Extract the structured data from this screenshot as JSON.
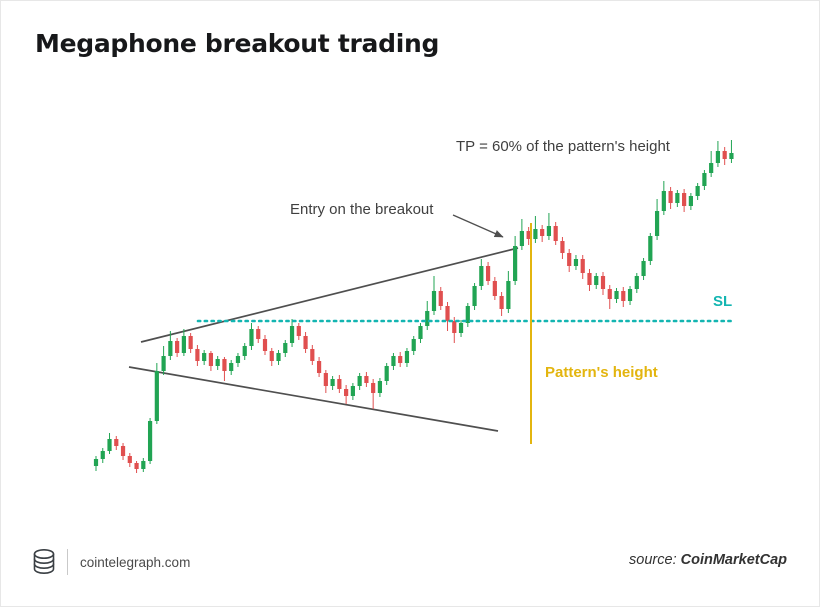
{
  "page": {
    "title": "Megaphone breakout trading"
  },
  "annotations": {
    "tp_label": "TP = 60% of the pattern's height",
    "entry_label": "Entry on the breakout",
    "sl_label": "SL",
    "height_label": "Pattern's height"
  },
  "footer": {
    "site": "cointelegraph.com",
    "source_prefix": "source: ",
    "source_name": "CoinMarketCap"
  },
  "colors": {
    "up": "#21a453",
    "down": "#e04f4f",
    "trendline": "#4f4f4f",
    "sl": "#13b5b1",
    "height": "#e3b50f",
    "text": "#3f3f3f",
    "title": "#17181a"
  },
  "chart_data": {
    "type": "candlestick",
    "title": "Megaphone breakout trading",
    "xlabel": "",
    "ylabel": "",
    "grid": false,
    "legend": "none",
    "ylim": [
      0,
      345
    ],
    "x_count": 95,
    "x_start": 95,
    "x_step": 6.76,
    "candle_width": 4.2,
    "y_base": 480,
    "y_scale": 1,
    "candles": [
      [
        15,
        25,
        10,
        22
      ],
      [
        22,
        33,
        18,
        30
      ],
      [
        30,
        48,
        27,
        42
      ],
      [
        42,
        45,
        31,
        35
      ],
      [
        35,
        38,
        21,
        25
      ],
      [
        25,
        28,
        14,
        18
      ],
      [
        18,
        20,
        8,
        12
      ],
      [
        12,
        23,
        9,
        20
      ],
      [
        20,
        63,
        17,
        60
      ],
      [
        60,
        118,
        57,
        110
      ],
      [
        110,
        135,
        106,
        125
      ],
      [
        125,
        150,
        121,
        140
      ],
      [
        140,
        143,
        124,
        128
      ],
      [
        128,
        152,
        125,
        145
      ],
      [
        145,
        148,
        128,
        132
      ],
      [
        132,
        136,
        115,
        120
      ],
      [
        120,
        131,
        116,
        128
      ],
      [
        128,
        130,
        110,
        115
      ],
      [
        115,
        125,
        111,
        122
      ],
      [
        122,
        124,
        100,
        110
      ],
      [
        110,
        121,
        106,
        118
      ],
      [
        118,
        128,
        114,
        125
      ],
      [
        125,
        138,
        121,
        135
      ],
      [
        135,
        158,
        131,
        152
      ],
      [
        152,
        155,
        138,
        142
      ],
      [
        142,
        146,
        126,
        130
      ],
      [
        130,
        133,
        115,
        120
      ],
      [
        120,
        131,
        116,
        128
      ],
      [
        128,
        141,
        124,
        138
      ],
      [
        138,
        162,
        134,
        155
      ],
      [
        155,
        158,
        141,
        145
      ],
      [
        145,
        149,
        128,
        132
      ],
      [
        132,
        136,
        116,
        120
      ],
      [
        120,
        124,
        104,
        108
      ],
      [
        108,
        111,
        88,
        95
      ],
      [
        95,
        105,
        91,
        102
      ],
      [
        102,
        106,
        88,
        92
      ],
      [
        92,
        96,
        77,
        85
      ],
      [
        85,
        98,
        81,
        95
      ],
      [
        95,
        108,
        91,
        105
      ],
      [
        105,
        109,
        94,
        98
      ],
      [
        98,
        102,
        72,
        88
      ],
      [
        88,
        103,
        84,
        100
      ],
      [
        100,
        118,
        96,
        115
      ],
      [
        115,
        128,
        111,
        125
      ],
      [
        125,
        129,
        114,
        118
      ],
      [
        118,
        133,
        114,
        130
      ],
      [
        130,
        145,
        126,
        142
      ],
      [
        142,
        158,
        138,
        155
      ],
      [
        155,
        180,
        151,
        170
      ],
      [
        170,
        205,
        166,
        190
      ],
      [
        190,
        194,
        171,
        175
      ],
      [
        175,
        179,
        150,
        160
      ],
      [
        160,
        164,
        138,
        148
      ],
      [
        148,
        161,
        144,
        158
      ],
      [
        158,
        178,
        154,
        175
      ],
      [
        175,
        198,
        171,
        195
      ],
      [
        195,
        222,
        191,
        215
      ],
      [
        215,
        219,
        196,
        200
      ],
      [
        200,
        204,
        181,
        185
      ],
      [
        185,
        189,
        165,
        172
      ],
      [
        172,
        210,
        168,
        200
      ],
      [
        200,
        245,
        196,
        235
      ],
      [
        235,
        262,
        231,
        250
      ],
      [
        250,
        254,
        236,
        242
      ],
      [
        242,
        265,
        238,
        252
      ],
      [
        252,
        256,
        239,
        245
      ],
      [
        245,
        268,
        241,
        255
      ],
      [
        255,
        259,
        236,
        240
      ],
      [
        240,
        244,
        222,
        228
      ],
      [
        228,
        232,
        209,
        215
      ],
      [
        215,
        226,
        211,
        222
      ],
      [
        222,
        226,
        202,
        208
      ],
      [
        208,
        212,
        190,
        196
      ],
      [
        196,
        208,
        192,
        205
      ],
      [
        205,
        209,
        186,
        192
      ],
      [
        192,
        196,
        172,
        182
      ],
      [
        182,
        193,
        178,
        190
      ],
      [
        190,
        194,
        174,
        180
      ],
      [
        180,
        195,
        176,
        192
      ],
      [
        192,
        208,
        188,
        205
      ],
      [
        205,
        223,
        201,
        220
      ],
      [
        220,
        248,
        216,
        245
      ],
      [
        245,
        282,
        241,
        270
      ],
      [
        270,
        300,
        266,
        290
      ],
      [
        290,
        294,
        272,
        278
      ],
      [
        278,
        291,
        274,
        288
      ],
      [
        288,
        292,
        269,
        275
      ],
      [
        275,
        288,
        271,
        285
      ],
      [
        285,
        298,
        281,
        295
      ],
      [
        295,
        311,
        291,
        308
      ],
      [
        308,
        330,
        304,
        318
      ],
      [
        318,
        340,
        314,
        330
      ],
      [
        330,
        334,
        316,
        322
      ],
      [
        322,
        341,
        318,
        328
      ]
    ],
    "lines": {
      "upper_trendline": {
        "x1": 140,
        "y1": 341,
        "x2": 517,
        "y2": 247
      },
      "lower_trendline": {
        "x1": 128,
        "y1": 366,
        "x2": 497,
        "y2": 430
      },
      "stop_loss": {
        "x1": 197,
        "y1": 320,
        "x2": 731,
        "y2": 320
      },
      "pattern_height": {
        "x1": 530,
        "y1": 222,
        "x2": 530,
        "y2": 443
      }
    },
    "arrow": {
      "x1": 452,
      "y1": 214,
      "x2": 502,
      "y2": 236
    }
  }
}
